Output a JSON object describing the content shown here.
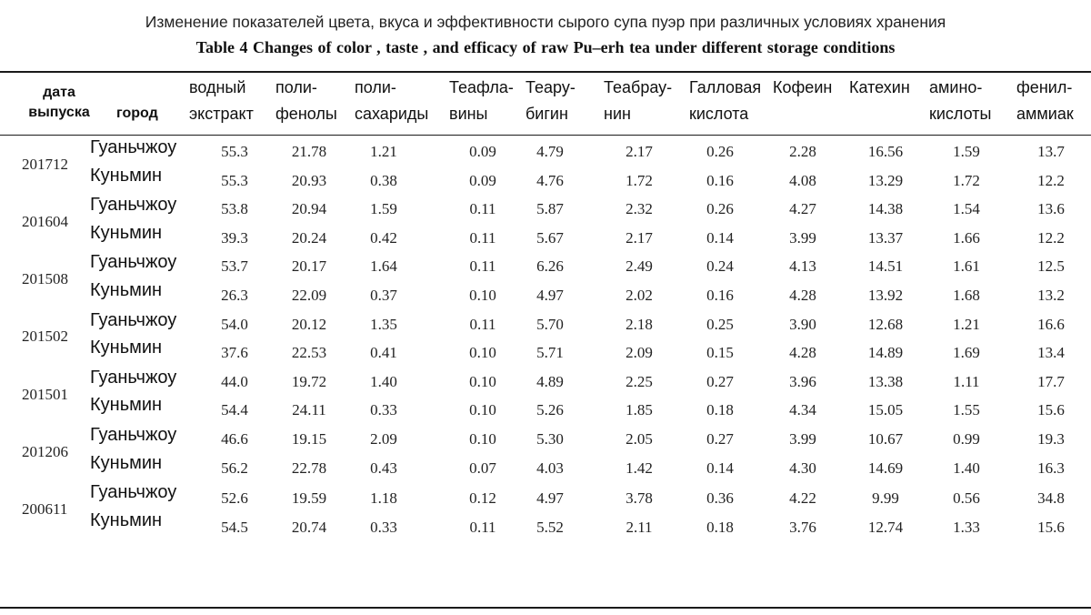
{
  "caption": {
    "ru": "Изменение показателей цвета, вкуса и эффективности сырого супа пуэр при различных условиях хранения",
    "en": "Table 4    Changes of color , taste , and efficacy of raw Pu–erh tea under different storage conditions"
  },
  "headers": {
    "date": [
      "дата",
      "выпуска"
    ],
    "city": "город",
    "cols": [
      [
        "водный",
        "экстракт"
      ],
      [
        "поли-",
        "фенолы"
      ],
      [
        "поли-",
        "сахариды"
      ],
      [
        "Теафла-",
        "вины"
      ],
      [
        "Теару-",
        "бигин"
      ],
      [
        "Теабрау-",
        "нин"
      ],
      [
        "Галловая",
        "кислота"
      ],
      [
        "Кофеин",
        ""
      ],
      [
        "Катехин",
        ""
      ],
      [
        "амино-",
        "кислоты"
      ],
      [
        "фенил-",
        "аммиак"
      ]
    ]
  },
  "dates": [
    "201712",
    "201604",
    "201508",
    "201502",
    "201501",
    "201206",
    "200611"
  ],
  "cities": [
    "Гуаньчжоу",
    "Куньмин",
    "Гуаньчжоу",
    "Куньмин",
    "Гуаньчжоу",
    "Куньмин",
    "Гуаньчжоу",
    "Куньмин",
    "Гуаньчжоу",
    "Куньмин",
    "Гуаньчжоу",
    "Куньмин",
    "Гуаньчжоу",
    "Куньмин"
  ],
  "rows": [
    [
      "55.3",
      "21.78",
      "1.21",
      "0.09",
      "4.79",
      "2.17",
      "0.26",
      "2.28",
      "16.56",
      "1.59",
      "13.7"
    ],
    [
      "55.3",
      "20.93",
      "0.38",
      "0.09",
      "4.76",
      "1.72",
      "0.16",
      "4.08",
      "13.29",
      "1.72",
      "12.2"
    ],
    [
      "53.8",
      "20.94",
      "1.59",
      "0.11",
      "5.87",
      "2.32",
      "0.26",
      "4.27",
      "14.38",
      "1.54",
      "13.6"
    ],
    [
      "39.3",
      "20.24",
      "0.42",
      "0.11",
      "5.67",
      "2.17",
      "0.14",
      "3.99",
      "13.37",
      "1.66",
      "12.2"
    ],
    [
      "53.7",
      "20.17",
      "1.64",
      "0.11",
      "6.26",
      "2.49",
      "0.24",
      "4.13",
      "14.51",
      "1.61",
      "12.5"
    ],
    [
      "26.3",
      "22.09",
      "0.37",
      "0.10",
      "4.97",
      "2.02",
      "0.16",
      "4.28",
      "13.92",
      "1.68",
      "13.2"
    ],
    [
      "54.0",
      "20.12",
      "1.35",
      "0.11",
      "5.70",
      "2.18",
      "0.25",
      "3.90",
      "12.68",
      "1.21",
      "16.6"
    ],
    [
      "37.6",
      "22.53",
      "0.41",
      "0.10",
      "5.71",
      "2.09",
      "0.15",
      "4.28",
      "14.89",
      "1.69",
      "13.4"
    ],
    [
      "44.0",
      "19.72",
      "1.40",
      "0.10",
      "4.89",
      "2.25",
      "0.27",
      "3.96",
      "13.38",
      "1.11",
      "17.7"
    ],
    [
      "54.4",
      "24.11",
      "0.33",
      "0.10",
      "5.26",
      "1.85",
      "0.18",
      "4.34",
      "15.05",
      "1.55",
      "15.6"
    ],
    [
      "46.6",
      "19.15",
      "2.09",
      "0.10",
      "5.30",
      "2.05",
      "0.27",
      "3.99",
      "10.67",
      "0.99",
      "19.3"
    ],
    [
      "56.2",
      "22.78",
      "0.43",
      "0.07",
      "4.03",
      "1.42",
      "0.14",
      "4.30",
      "14.69",
      "1.40",
      "16.3"
    ],
    [
      "52.6",
      "19.59",
      "1.18",
      "0.12",
      "4.97",
      "3.78",
      "0.36",
      "4.22",
      "9.99",
      "0.56",
      "34.8"
    ],
    [
      "54.5",
      "20.74",
      "0.33",
      "0.11",
      "5.52",
      "2.11",
      "0.18",
      "3.76",
      "12.74",
      "1.33",
      "15.6"
    ]
  ]
}
